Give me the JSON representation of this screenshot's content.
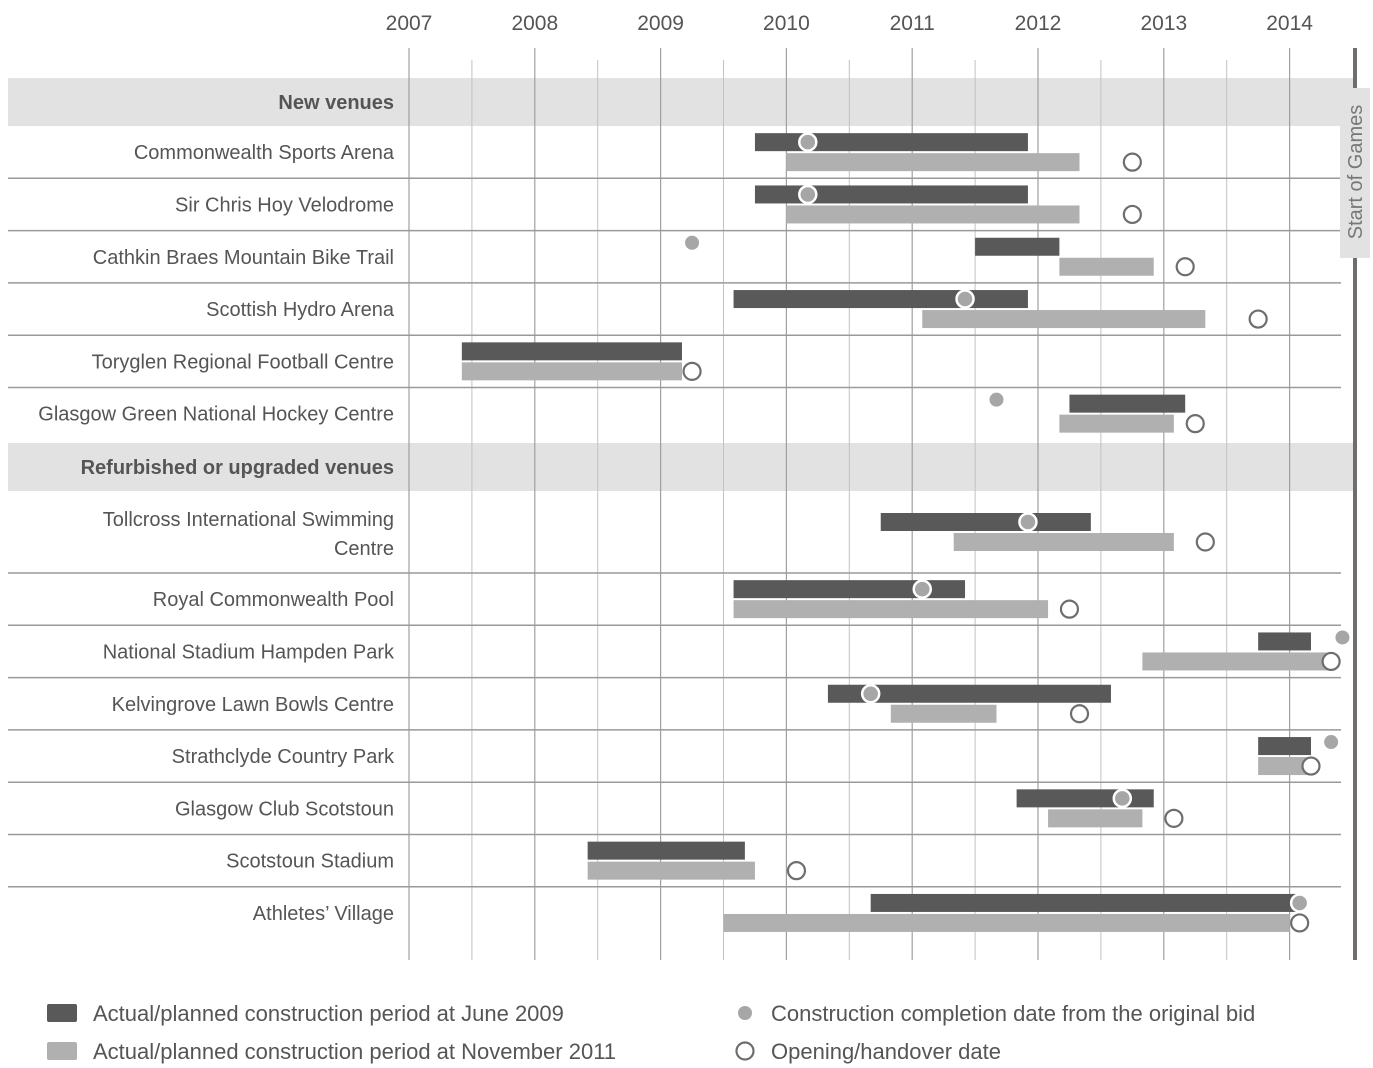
{
  "chart_data": {
    "type": "gantt",
    "x_axis": {
      "min": 2007,
      "max": 2014.45,
      "ticks": [
        "2007",
        "2008",
        "2009",
        "2010",
        "2011",
        "2012",
        "2013",
        "2014"
      ]
    },
    "games_marker": {
      "x": 2014.5,
      "label": "Start of Games"
    },
    "colors": {
      "period_2009": "#595959",
      "period_2011": "#b0b0b0",
      "bid_dot": "#a6a6a6",
      "open_ring": "#6e6e6e",
      "section_bg": "#e2e2e2",
      "grid": "#9a9a9a"
    },
    "sections": [
      {
        "title": "New venues",
        "rows": [
          {
            "name": "Commonwealth Sports Arena",
            "bar2009": [
              2009.75,
              2011.92
            ],
            "bar2011": [
              2010.0,
              2012.33
            ],
            "bid_x": 2010.17,
            "open_x": 2012.75
          },
          {
            "name": "Sir Chris Hoy Velodrome",
            "bar2009": [
              2009.75,
              2011.92
            ],
            "bar2011": [
              2010.0,
              2012.33
            ],
            "bid_x": 2010.17,
            "open_x": 2012.75
          },
          {
            "name": "Cathkin Braes Mountain Bike Trail",
            "bar2009": [
              2011.5,
              2012.17
            ],
            "bar2011": [
              2012.17,
              2012.92
            ],
            "bid_x": 2009.25,
            "bid_style": "dot",
            "open_x": 2013.17
          },
          {
            "name": "Scottish Hydro Arena",
            "bar2009": [
              2009.58,
              2011.92
            ],
            "bar2011": [
              2011.08,
              2013.33
            ],
            "bid_x": 2011.42,
            "open_x": 2013.75
          },
          {
            "name": "Toryglen Regional Football Centre",
            "bar2009": [
              2007.42,
              2009.17
            ],
            "bar2011": [
              2007.42,
              2009.17
            ],
            "open_x": 2009.25
          },
          {
            "name": "Glasgow Green National Hockey Centre",
            "bar2009": [
              2012.25,
              2013.17
            ],
            "bar2011": [
              2012.17,
              2013.08
            ],
            "bid_x": 2011.67,
            "bid_style": "dot",
            "open_x": 2013.25
          }
        ]
      },
      {
        "title": "Refurbished or upgraded venues",
        "rows": [
          {
            "name": "Tollcross International Swimming Centre",
            "bar2009": [
              2010.75,
              2012.42
            ],
            "bar2011": [
              2011.33,
              2013.08
            ],
            "bid_x": 2011.92,
            "open_x": 2013.33
          },
          {
            "name": "Royal Commonwealth Pool",
            "bar2009": [
              2009.58,
              2011.42
            ],
            "bar2011": [
              2009.58,
              2012.08
            ],
            "bid_x": 2011.08,
            "open_x": 2012.25
          },
          {
            "name": "National Stadium Hampden Park",
            "bar2009": [
              2013.75,
              2014.17
            ],
            "bar2011": [
              2012.83,
              2014.33
            ],
            "bid_x": 2014.42,
            "bid_style": "dot",
            "open_x": 2014.33
          },
          {
            "name": "Kelvingrove Lawn Bowls Centre",
            "bar2009": [
              2010.33,
              2012.58
            ],
            "bar2011": [
              2010.83,
              2011.67
            ],
            "bid_x": 2010.67,
            "open_x": 2012.33
          },
          {
            "name": "Strathclyde Country Park",
            "bar2009": [
              2013.75,
              2014.17
            ],
            "bar2011": [
              2013.75,
              2014.17
            ],
            "bid_x": 2014.33,
            "bid_style": "dot",
            "open_x": 2014.17
          },
          {
            "name": "Glasgow Club Scotstoun",
            "bar2009": [
              2011.83,
              2012.92
            ],
            "bar2011": [
              2012.08,
              2012.83
            ],
            "bid_x": 2012.67,
            "open_x": 2013.08
          },
          {
            "name": "Scotstoun Stadium",
            "bar2009": [
              2008.42,
              2009.67
            ],
            "bar2011": [
              2008.42,
              2009.75
            ],
            "open_x": 2010.08
          },
          {
            "name": "Athletes’ Village",
            "bar2009": [
              2010.67,
              2014.08
            ],
            "bar2011": [
              2009.5,
              2014.0
            ],
            "bid_x": 2014.08,
            "open_x": 2014.08
          }
        ]
      }
    ],
    "legend": [
      {
        "kind": "bar2009",
        "label": "Actual/planned construction period at June 2009"
      },
      {
        "kind": "bar2011",
        "label": "Actual/planned construction period at November 2011"
      },
      {
        "kind": "dot",
        "label": "Construction completion date from the original bid"
      },
      {
        "kind": "ring",
        "label": "Opening/handover date"
      }
    ]
  }
}
